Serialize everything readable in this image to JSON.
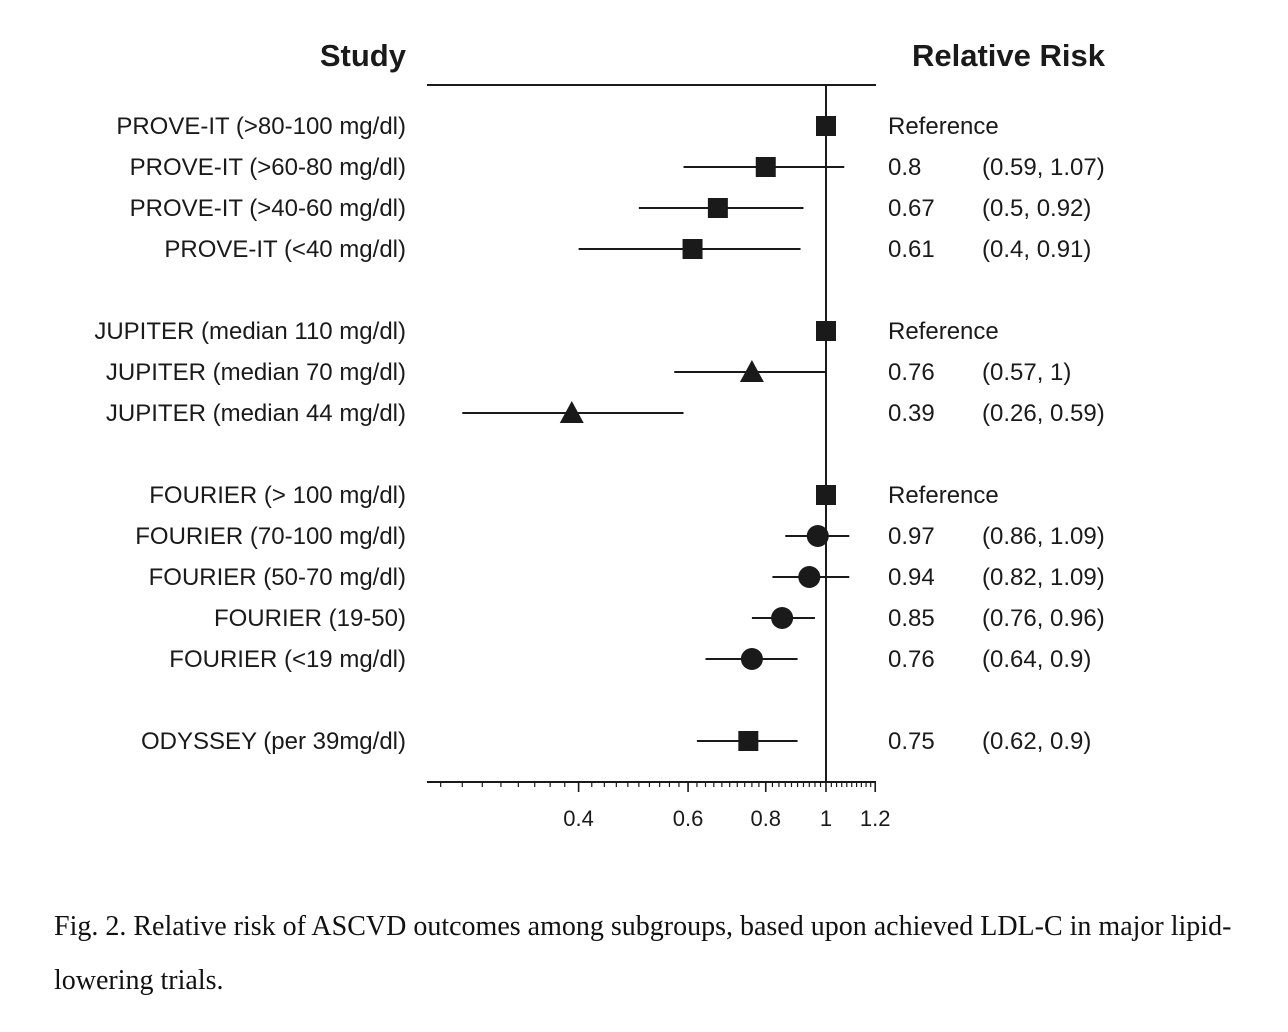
{
  "chart_data": {
    "type": "forest",
    "column_headers": {
      "study": "Study",
      "estimate": "Relative Risk"
    },
    "x_scale": "log",
    "xlim": [
      0.22,
      1.2
    ],
    "x_tick_labels": [
      "0.4",
      "0.6",
      "0.8",
      "1",
      "1.2"
    ],
    "x_tick_values": [
      0.4,
      0.6,
      0.8,
      1.0,
      1.2
    ],
    "reference_line": 1,
    "groups": [
      {
        "rows": [
          {
            "label": "PROVE-IT (>80-100 mg/dl)",
            "estimate": 1.0,
            "ci": null,
            "marker": "square",
            "rr_text": "Reference",
            "ci_text": ""
          },
          {
            "label": "PROVE-IT (>60-80 mg/dl)",
            "estimate": 0.8,
            "ci": [
              0.59,
              1.07
            ],
            "marker": "square",
            "rr_text": "0.8",
            "ci_text": "(0.59, 1.07)"
          },
          {
            "label": "PROVE-IT (>40-60 mg/dl)",
            "estimate": 0.67,
            "ci": [
              0.5,
              0.92
            ],
            "marker": "square",
            "rr_text": "0.67",
            "ci_text": "(0.5, 0.92)"
          },
          {
            "label": "PROVE-IT (<40 mg/dl)",
            "estimate": 0.61,
            "ci": [
              0.4,
              0.91
            ],
            "marker": "square",
            "rr_text": "0.61",
            "ci_text": "(0.4, 0.91)"
          }
        ]
      },
      {
        "rows": [
          {
            "label": "JUPITER (median 110 mg/dl)",
            "estimate": 1.0,
            "ci": null,
            "marker": "square",
            "rr_text": "Reference",
            "ci_text": ""
          },
          {
            "label": "JUPITER (median 70 mg/dl)",
            "estimate": 0.76,
            "ci": [
              0.57,
              1.0
            ],
            "marker": "triangle",
            "rr_text": "0.76",
            "ci_text": "(0.57, 1)"
          },
          {
            "label": "JUPITER (median 44 mg/dl)",
            "estimate": 0.39,
            "ci": [
              0.26,
              0.59
            ],
            "marker": "triangle",
            "rr_text": "0.39",
            "ci_text": "(0.26, 0.59)"
          }
        ]
      },
      {
        "rows": [
          {
            "label": "FOURIER (> 100 mg/dl)",
            "estimate": 1.0,
            "ci": null,
            "marker": "square",
            "rr_text": "Reference",
            "ci_text": ""
          },
          {
            "label": "FOURIER (70-100 mg/dl)",
            "estimate": 0.97,
            "ci": [
              0.86,
              1.09
            ],
            "marker": "circle",
            "rr_text": "0.97",
            "ci_text": "(0.86, 1.09)"
          },
          {
            "label": "FOURIER (50-70 mg/dl)",
            "estimate": 0.94,
            "ci": [
              0.82,
              1.09
            ],
            "marker": "circle",
            "rr_text": "0.94",
            "ci_text": "(0.82, 1.09)"
          },
          {
            "label": "FOURIER (19-50)",
            "estimate": 0.85,
            "ci": [
              0.76,
              0.96
            ],
            "marker": "circle",
            "rr_text": "0.85",
            "ci_text": "(0.76, 0.96)"
          },
          {
            "label": "FOURIER (<19 mg/dl)",
            "estimate": 0.76,
            "ci": [
              0.64,
              0.9
            ],
            "marker": "circle",
            "rr_text": "0.76",
            "ci_text": "(0.64, 0.9)"
          }
        ]
      },
      {
        "rows": [
          {
            "label": "ODYSSEY (per 39mg/dl)",
            "estimate": 0.75,
            "ci": [
              0.62,
              0.9
            ],
            "marker": "square",
            "rr_text": "0.75",
            "ci_text": "(0.62, 0.9)"
          }
        ]
      }
    ],
    "colors": {
      "ink": "#1a1a1a"
    }
  },
  "caption": "Fig. 2. Relative risk of ASCVD outcomes among subgroups, based upon achieved LDL-C in major lipid-lowering trials."
}
